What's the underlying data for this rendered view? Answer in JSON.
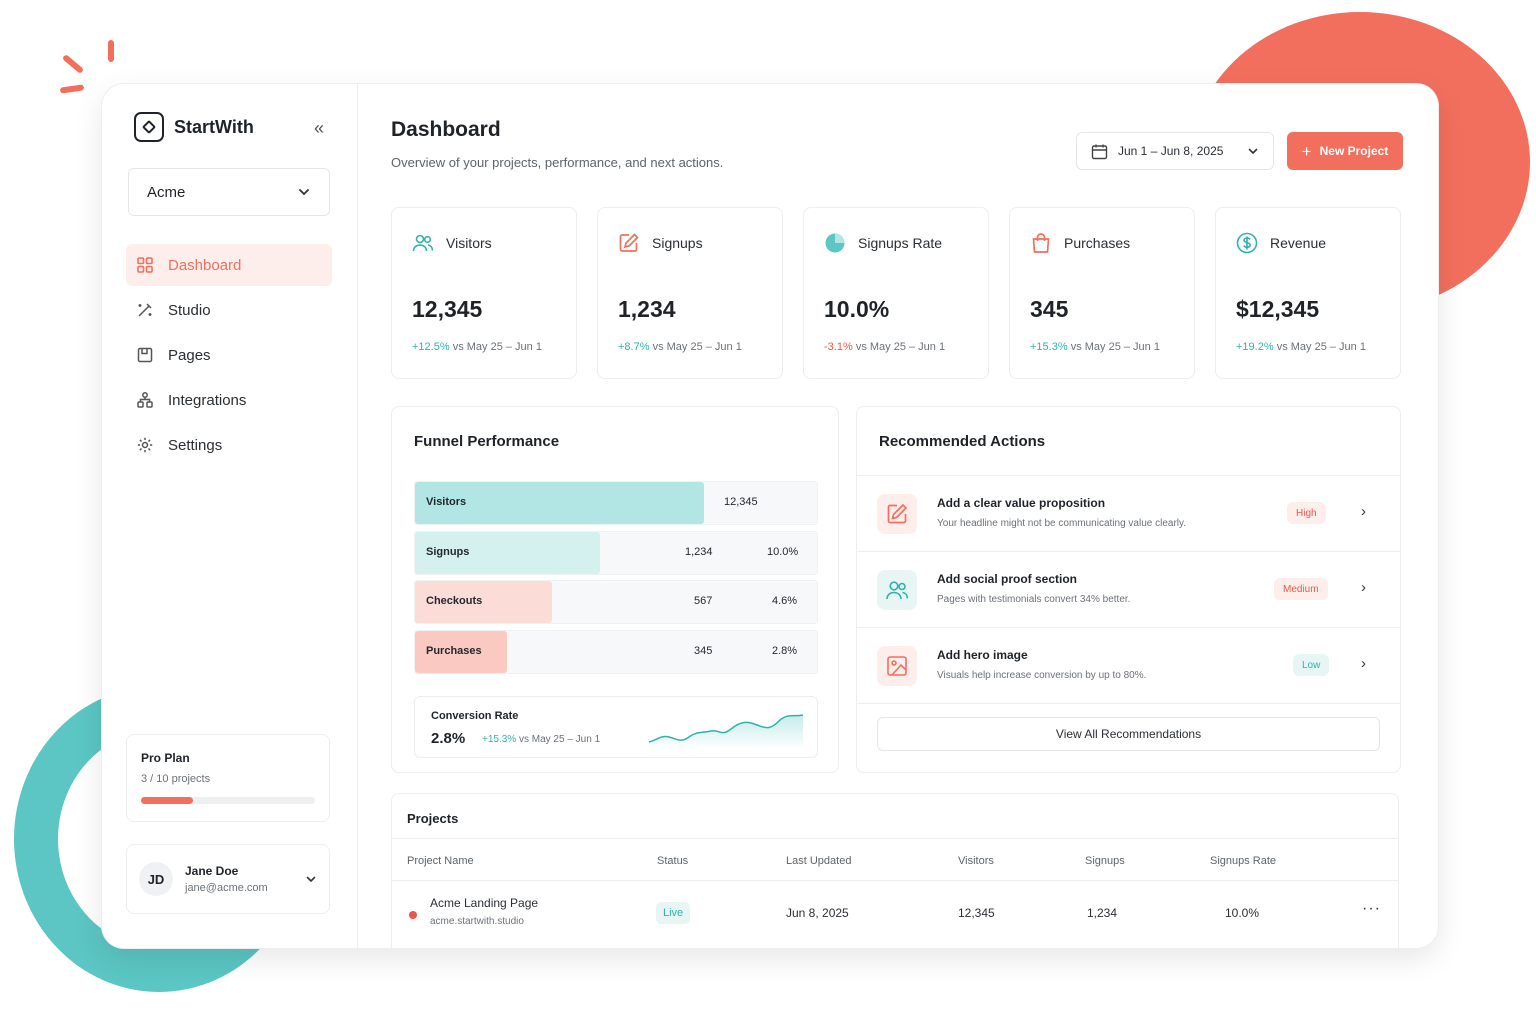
{
  "brand": {
    "name": "StartWith"
  },
  "workspace": {
    "name": "Acme"
  },
  "nav": [
    {
      "label": "Dashboard",
      "icon": "grid-icon",
      "active": true
    },
    {
      "label": "Studio",
      "icon": "wand-icon"
    },
    {
      "label": "Pages",
      "icon": "page-icon"
    },
    {
      "label": "Integrations",
      "icon": "integrations-icon"
    },
    {
      "label": "Settings",
      "icon": "gear-icon"
    }
  ],
  "plan": {
    "name": "Pro Plan",
    "usage": "3 / 10 projects",
    "fraction": 0.3
  },
  "user": {
    "initials": "JD",
    "name": "Jane Doe",
    "email": "jane@acme.com"
  },
  "header": {
    "title": "Dashboard",
    "subtitle": "Overview of your projects, performance, and next actions.",
    "date_range": "Jun 1 – Jun 8, 2025",
    "new_button": "New Project"
  },
  "stats": [
    {
      "label": "Visitors",
      "icon": "users-icon",
      "value": "12,345",
      "delta": "+12.5%",
      "trend": "up",
      "compare": "vs May 25 – Jun 1"
    },
    {
      "label": "Signups",
      "icon": "edit-icon",
      "value": "1,234",
      "delta": "+8.7%",
      "trend": "up",
      "compare": "vs May 25 – Jun 1"
    },
    {
      "label": "Signups Rate",
      "icon": "pie-icon",
      "value": "10.0%",
      "delta": "-3.1%",
      "trend": "down",
      "compare": "vs May 25 – Jun 1"
    },
    {
      "label": "Purchases",
      "icon": "bag-icon",
      "value": "345",
      "delta": "+15.3%",
      "trend": "up",
      "compare": "vs May 25 – Jun 1"
    },
    {
      "label": "Revenue",
      "icon": "dollar-icon",
      "value": "$12,345",
      "delta": "+19.2%",
      "trend": "up",
      "compare": "vs May 25 – Jun 1"
    }
  ],
  "funnel": {
    "title": "Funnel Performance",
    "rows": [
      {
        "label": "Visitors",
        "count": "12,345",
        "pct": "",
        "fraction": 0.72,
        "color": "#b2e6e4"
      },
      {
        "label": "Signups",
        "count": "1,234",
        "pct": "10.0%",
        "fraction": 0.46,
        "color": "#d4f1f0"
      },
      {
        "label": "Checkouts",
        "count": "567",
        "pct": "4.6%",
        "fraction": 0.34,
        "color": "#fcdcd6"
      },
      {
        "label": "Purchases",
        "count": "345",
        "pct": "2.8%",
        "fraction": 0.23,
        "color": "#f9c9c2"
      }
    ],
    "conversion": {
      "label": "Conversion Rate",
      "value": "2.8%",
      "delta": "+15.3%",
      "compare": "vs May 25 – Jun 1"
    }
  },
  "recommendations": {
    "title": "Recommended Actions",
    "items": [
      {
        "title": "Add a clear value proposition",
        "desc": "Your headline might not be communicating value clearly.",
        "priority": "High",
        "icon": "edit-icon",
        "icon_color": "#f26f5e",
        "icon_bg": "#fdeeeb",
        "badge_color": "#ea5848",
        "badge_bg": "#fdeeeb"
      },
      {
        "title": "Add social proof section",
        "desc": "Pages with testimonials convert 34% better.",
        "priority": "Medium",
        "icon": "users-icon",
        "icon_color": "#2fb2ab",
        "icon_bg": "#e7f6f5",
        "badge_color": "#ea5848",
        "badge_bg": "#fdeeeb"
      },
      {
        "title": "Add hero image",
        "desc": "Visuals help increase conversion by up to 80%.",
        "priority": "Low",
        "icon": "image-icon",
        "icon_color": "#f26f5e",
        "icon_bg": "#fdeeeb",
        "badge_color": "#2fb2ab",
        "badge_bg": "#e7f6f5"
      }
    ],
    "view_all": "View All Recommendations"
  },
  "projects": {
    "title": "Projects",
    "columns": [
      "Project Name",
      "Status",
      "Last Updated",
      "Visitors",
      "Signups",
      "Signups Rate"
    ],
    "rows": [
      {
        "name": "Acme Landing Page",
        "domain": "acme.startwith.studio",
        "status": "Live",
        "updated": "Jun 8, 2025",
        "visitors": "12,345",
        "signups": "1,234",
        "rate": "10.0%"
      }
    ]
  }
}
